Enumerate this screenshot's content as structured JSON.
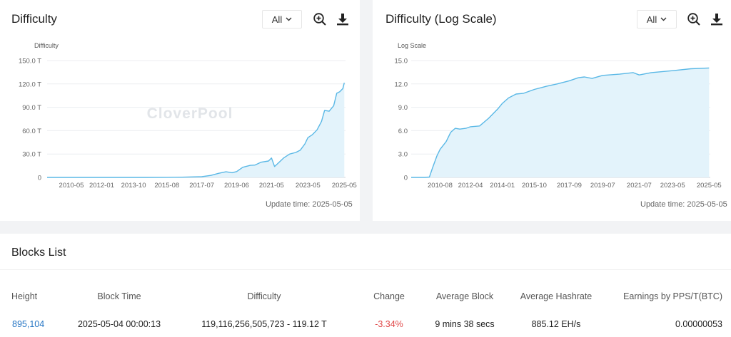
{
  "difficulty_card": {
    "title": "Difficulty",
    "range_selected": "All",
    "update_time": "Update time: 2025-05-05"
  },
  "log_card": {
    "title": "Difficulty (Log Scale)",
    "range_selected": "All",
    "update_time": "Update time: 2025-05-05"
  },
  "watermark": "CloverPool",
  "icons": {
    "zoom": "zoom-in-icon",
    "download": "download-icon",
    "chevron": "chevron-down-icon"
  },
  "colors": {
    "line": "#5ab8e6",
    "area": "#e3f3fb",
    "link": "#2575c4",
    "negative": "#e04848"
  },
  "chart_data": [
    {
      "type": "area",
      "ylabel": "Difficulty",
      "yticks": [
        "150.0 T",
        "120.0 T",
        "90.0 T",
        "60.0 T",
        "30.0 T",
        "0"
      ],
      "ylim": [
        0,
        150
      ],
      "x_tick_labels": [
        "2010-05",
        "2012-01",
        "2013-10",
        "2015-08",
        "2017-07",
        "2019-06",
        "2021-05",
        "2023-05",
        "2025-05"
      ],
      "series": [
        {
          "x": [
            "2009-01",
            "2010-05",
            "2012-01",
            "2013-10",
            "2014-06",
            "2015-08",
            "2016-06",
            "2017-07",
            "2018-01",
            "2018-06",
            "2018-11",
            "2019-03",
            "2019-06",
            "2019-10",
            "2020-03",
            "2020-06",
            "2020-10",
            "2021-03",
            "2021-05",
            "2021-07",
            "2021-10",
            "2022-01",
            "2022-05",
            "2022-09",
            "2022-12",
            "2023-03",
            "2023-05",
            "2023-08",
            "2023-11",
            "2024-02",
            "2024-04",
            "2024-07",
            "2024-10",
            "2024-12",
            "2025-02",
            "2025-04",
            "2025-05"
          ],
          "y": [
            0,
            0,
            0,
            0.005,
            0.03,
            0.06,
            0.25,
            0.9,
            2.6,
            5.2,
            7.2,
            6,
            7.5,
            13,
            15.5,
            15.8,
            19.5,
            21,
            25,
            14,
            19.5,
            25,
            30,
            32,
            35,
            43,
            51,
            55,
            61,
            72,
            86,
            85,
            92,
            108,
            110,
            114,
            121.5
          ]
        }
      ],
      "grid": true,
      "legend": "none"
    },
    {
      "type": "area",
      "ylabel": "Log Scale",
      "yticks": [
        "15.0",
        "12.0",
        "9.0",
        "6.0",
        "3.0",
        "0"
      ],
      "ylim": [
        0,
        15
      ],
      "log_scale": true,
      "x_tick_labels": [
        "2010-08",
        "2012-04",
        "2014-01",
        "2015-10",
        "2017-09",
        "2019-07",
        "2021-07",
        "2023-05",
        "2025-05"
      ],
      "series": [
        {
          "x": [
            "2009-01",
            "2009-10",
            "2010-01",
            "2010-03",
            "2010-06",
            "2010-08",
            "2010-12",
            "2011-03",
            "2011-06",
            "2011-09",
            "2012-01",
            "2012-04",
            "2012-10",
            "2013-04",
            "2013-10",
            "2014-01",
            "2014-05",
            "2014-10",
            "2015-03",
            "2015-10",
            "2016-06",
            "2017-01",
            "2017-09",
            "2018-03",
            "2018-07",
            "2018-12",
            "2019-07",
            "2020-06",
            "2021-03",
            "2021-07",
            "2022-03",
            "2023-05",
            "2024-05",
            "2025-05"
          ],
          "y": [
            0,
            0,
            0.05,
            1.2,
            2.8,
            3.6,
            4.6,
            5.8,
            6.3,
            6.2,
            6.3,
            6.5,
            6.6,
            7.6,
            8.8,
            9.5,
            10.2,
            10.7,
            10.8,
            11.3,
            11.7,
            12.0,
            12.4,
            12.8,
            12.9,
            12.7,
            13.1,
            13.25,
            13.45,
            13.15,
            13.45,
            13.7,
            13.95,
            14.05
          ]
        }
      ],
      "grid": true,
      "legend": "none"
    }
  ],
  "blocks": {
    "title": "Blocks List",
    "columns": [
      "Height",
      "Block Time",
      "Difficulty",
      "Change",
      "Average Block",
      "Average Hashrate",
      "Earnings by PPS/T(BTC)"
    ],
    "rows": [
      {
        "height": "895,104",
        "block_time": "2025-05-04 00:00:13",
        "difficulty": "119,116,256,505,723 - 119.12 T",
        "change": "-3.34%",
        "average_block": "9 mins 38 secs",
        "average_hashrate": "885.12 EH/s",
        "earnings": "0.00000053"
      }
    ]
  }
}
